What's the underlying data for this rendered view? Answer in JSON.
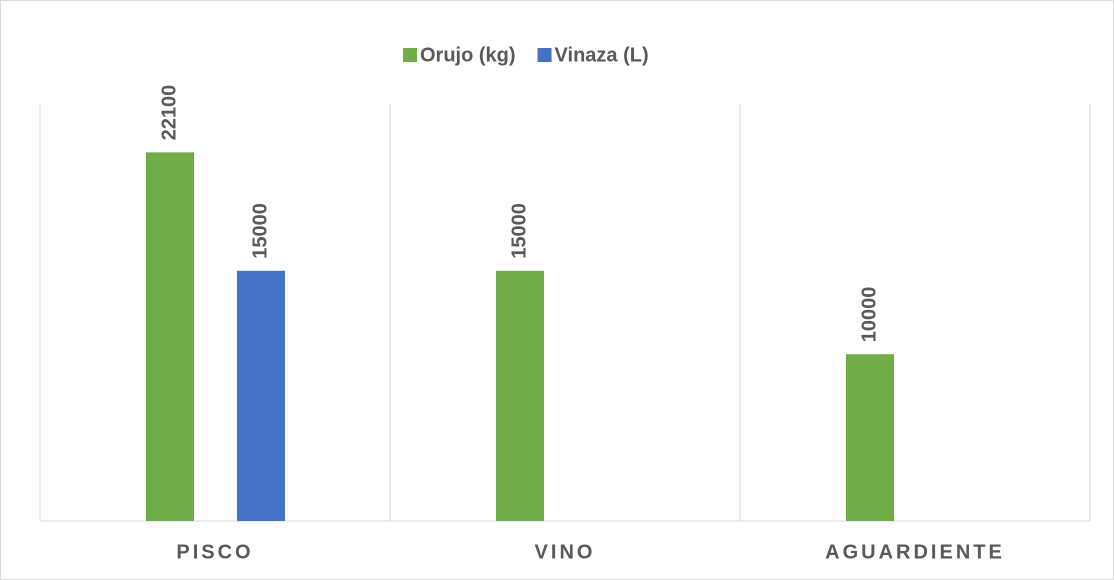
{
  "chart_data": {
    "type": "bar",
    "categories": [
      "PISCO",
      "VINO",
      "AGUARDIENTE"
    ],
    "series": [
      {
        "name": "Orujo (kg)",
        "color": "#70ad47",
        "values": [
          22100,
          15000,
          10000
        ]
      },
      {
        "name": "Vinaza (L)",
        "color": "#4472c4",
        "values": [
          15000,
          null,
          null
        ]
      }
    ],
    "ylim": [
      0,
      25000
    ],
    "legend": "top"
  }
}
